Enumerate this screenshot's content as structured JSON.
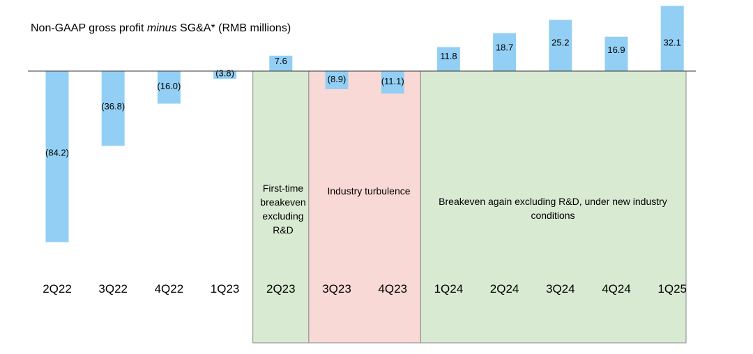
{
  "chart_data": {
    "type": "bar",
    "title_prefix": "Non-GAAP gross profit ",
    "title_emphasis": "minus",
    "title_suffix": " SG&A* (RMB millions)",
    "categories": [
      "2Q22",
      "3Q22",
      "4Q22",
      "1Q23",
      "2Q23",
      "3Q23",
      "4Q23",
      "1Q24",
      "2Q24",
      "3Q24",
      "4Q24",
      "1Q25"
    ],
    "values": [
      -84.2,
      -36.8,
      -16.0,
      -3.8,
      7.6,
      -8.9,
      -11.1,
      11.8,
      18.7,
      25.2,
      16.9,
      32.1
    ],
    "data_labels": [
      "(84.2)",
      "(36.8)",
      "(16.0)",
      "(3.8)",
      "7.6",
      "(8.9)",
      "(11.1)",
      "11.8",
      "18.7",
      "25.2",
      "16.9",
      "32.1"
    ],
    "bar_color": "#93cff4",
    "grid": false,
    "regions": [
      {
        "from": "2Q23",
        "to": "2Q23",
        "color": "#d9ead3",
        "label": "First-time breakeven excluding R&D"
      },
      {
        "from": "3Q23",
        "to": "4Q23",
        "color": "#f8d9d6",
        "label": "Industry turbulence"
      },
      {
        "from": "1Q24",
        "to": "1Q25",
        "color": "#d9ead3",
        "label": "Breakeven again excluding R&D, under new industry conditions"
      }
    ]
  }
}
